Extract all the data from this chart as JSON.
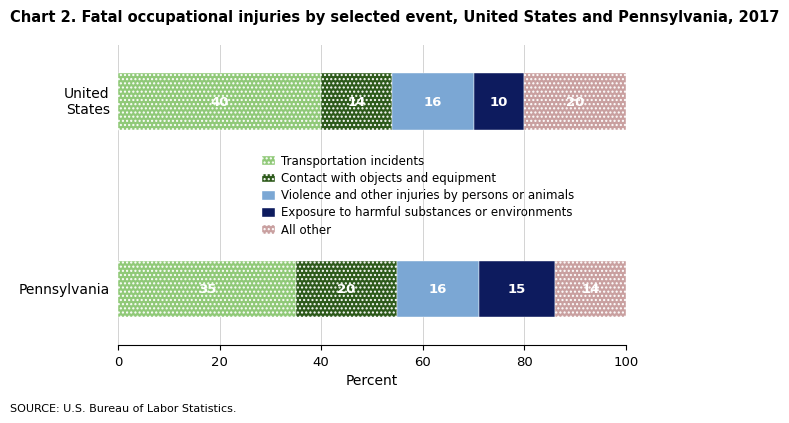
{
  "title": "Chart 2. Fatal occupational injuries by selected event, United States and Pennsylvania, 2017",
  "categories": [
    "United\nStates",
    "Pennsylvania"
  ],
  "segments": [
    {
      "label": "Transportation incidents",
      "values": [
        40,
        35
      ],
      "color": "#90C978",
      "hatch": "...."
    },
    {
      "label": "Contact with objects and equipment",
      "values": [
        14,
        20
      ],
      "color": "#2D5A1B",
      "hatch": "...."
    },
    {
      "label": "Violence and other injuries by persons or animals",
      "values": [
        16,
        16
      ],
      "color": "#7BA7D4",
      "hatch": ""
    },
    {
      "label": "Exposure to harmful substances or environments",
      "values": [
        10,
        15
      ],
      "color": "#0D1B5E",
      "hatch": ""
    },
    {
      "label": "All other",
      "values": [
        20,
        14
      ],
      "color": "#C9A0A0",
      "hatch": "...."
    }
  ],
  "xlabel": "Percent",
  "xlim": [
    0,
    100
  ],
  "xticks": [
    0,
    20,
    40,
    60,
    80,
    100
  ],
  "source": "SOURCE: U.S. Bureau of Labor Statistics.",
  "title_fontsize": 10.5,
  "label_fontsize": 10,
  "tick_fontsize": 9.5,
  "legend_fontsize": 8.5
}
